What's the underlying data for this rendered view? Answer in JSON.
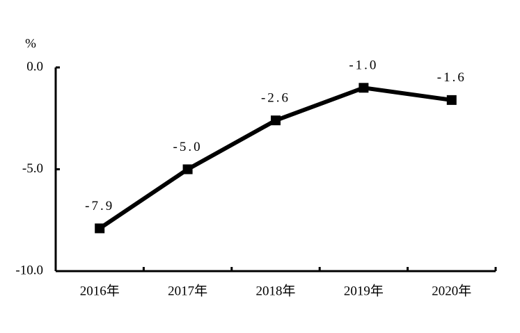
{
  "chart_data": {
    "type": "line",
    "ylabel": "%",
    "categories": [
      "2016年",
      "2017年",
      "2018年",
      "2019年",
      "2020年"
    ],
    "values": [
      -7.9,
      -5,
      -2.6,
      -1,
      -1.6
    ],
    "value_labels": [
      "-7.9",
      "-5.0",
      "-2.6",
      "-1.0",
      "-1.6"
    ],
    "color": "#000000",
    "ylim": [
      -10,
      0
    ],
    "yticks": [
      {
        "value": -10,
        "label": "-10.0"
      },
      {
        "value": -5,
        "label": "-5.0"
      },
      {
        "value": 0,
        "label": "0.0"
      }
    ],
    "grid": false
  }
}
